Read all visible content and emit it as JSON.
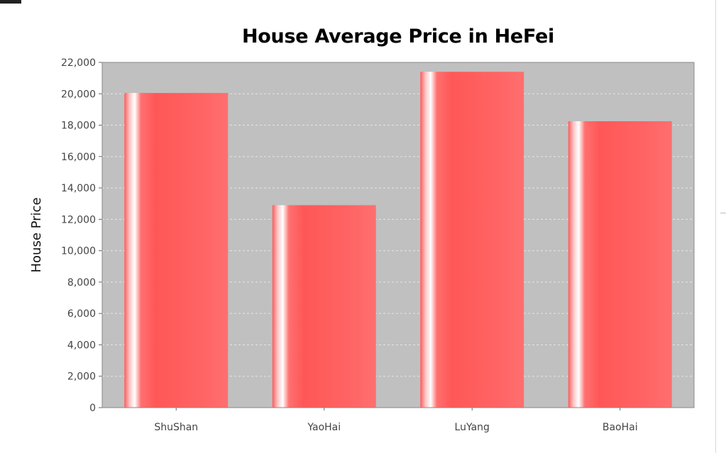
{
  "chart_data": {
    "type": "bar",
    "title": "House Average Price in HeFei",
    "xlabel": "",
    "ylabel": "House Price",
    "categories": [
      "ShuShan",
      "YaoHai",
      "LuYang",
      "BaoHai"
    ],
    "values": [
      20050,
      12900,
      21400,
      18250
    ],
    "ylim": [
      0,
      22000
    ],
    "yticks": [
      0,
      2000,
      4000,
      6000,
      8000,
      10000,
      12000,
      14000,
      16000,
      18000,
      20000,
      22000
    ],
    "ytick_labels": [
      "0",
      "2,000",
      "4,000",
      "6,000",
      "8,000",
      "10,000",
      "12,000",
      "14,000",
      "16,000",
      "18,000",
      "20,000",
      "22,000"
    ],
    "grid": true,
    "legend": "none",
    "colors": {
      "bar": "#ff5a5a",
      "bar_highlight": "#ffffff",
      "plot_background": "#c0c0c0",
      "grid": "#e6e6e6"
    }
  }
}
